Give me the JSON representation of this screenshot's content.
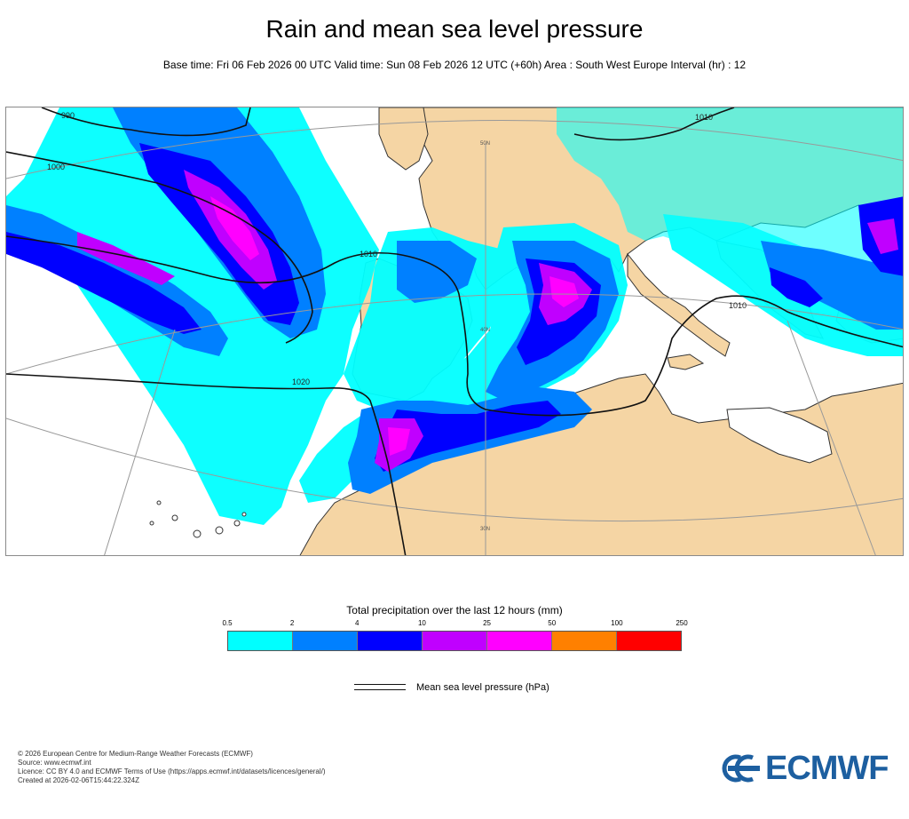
{
  "title": "Rain and mean sea level pressure",
  "subtitle": "Base time: Fri 06 Feb 2026 00 UTC Valid time: Sun 08 Feb 2026 12 UTC (+60h) Area : South West Europe Interval (hr) : 12",
  "map": {
    "region": "South West Europe",
    "colors": {
      "land": "#f5d5a4",
      "sea": "#ffffff",
      "coast": "#333333",
      "pressure_line": "#111111"
    },
    "isobar_labels": [
      "990",
      "1000",
      "1010",
      "1020",
      "1010",
      "1010"
    ],
    "grid_labels": [
      "50N",
      "40N",
      "30N"
    ]
  },
  "legend": {
    "title": "Total precipitation over the last 12 hours (mm)",
    "ticks": [
      "0.5",
      "2",
      "4",
      "10",
      "25",
      "50",
      "100",
      "250"
    ],
    "colors": [
      "#00ffff",
      "#0080ff",
      "#0000ff",
      "#c000ff",
      "#ff00ff",
      "#ff8000",
      "#ff0000"
    ],
    "pressure_label": "Mean sea level pressure (hPa)"
  },
  "footer": {
    "lines": [
      "© 2026 European Centre for Medium-Range Weather Forecasts (ECMWF)",
      "Source: www.ecmwf.int",
      "Licence: CC BY 4.0 and ECMWF Terms of Use (https://apps.ecmwf.int/datasets/licences/general/)",
      "Created at 2026-02-06T15:44:22.324Z"
    ]
  },
  "logo": {
    "text": "ECMWF",
    "color": "#1d5fa0"
  }
}
